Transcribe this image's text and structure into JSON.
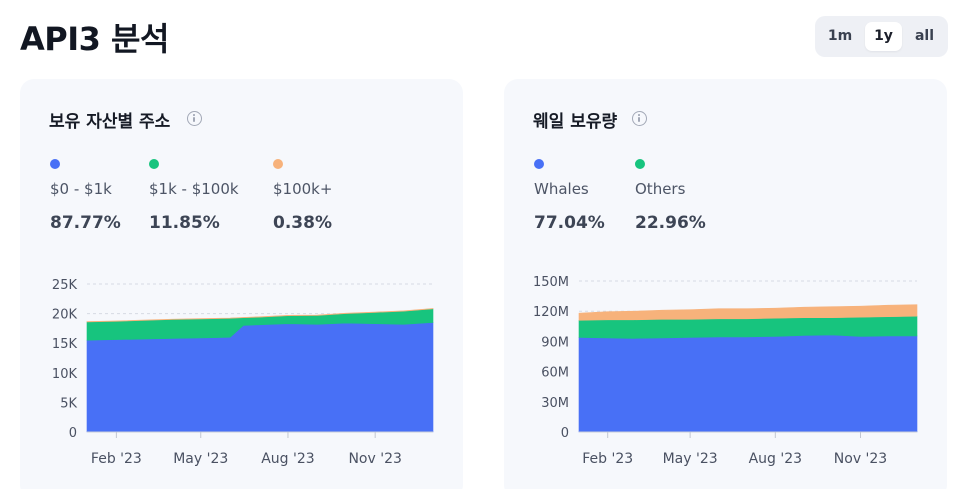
{
  "page": {
    "title": "API3 분석"
  },
  "range": {
    "options": [
      "1m",
      "1y",
      "all"
    ],
    "selected": "1y"
  },
  "colors": {
    "blue": "#4870f6",
    "green": "#17c47e",
    "orange": "#f7b27b",
    "grid": "#d6dae3",
    "axis_text": "#4a5162"
  },
  "cards": [
    {
      "title": "보유 자산별 주소",
      "legend": [
        {
          "color": "#4870f6",
          "label": "$0 - $1k",
          "value": "87.77%"
        },
        {
          "color": "#17c47e",
          "label": "$1k - $100k",
          "value": "11.85%"
        },
        {
          "color": "#f7b27b",
          "label": "$100k+",
          "value": "0.38%"
        }
      ]
    },
    {
      "title": "웨일 보유량",
      "legend": [
        {
          "color": "#4870f6",
          "label": "Whales",
          "value": "77.04%"
        },
        {
          "color": "#17c47e",
          "label": "Others",
          "value": "22.96%"
        }
      ]
    }
  ],
  "chart_data": [
    {
      "type": "area",
      "stacked": true,
      "x": [
        "2023-01-01",
        "2023-02-01",
        "2023-03-01",
        "2023-04-01",
        "2023-05-01",
        "2023-06-01",
        "2023-06-15",
        "2023-07-01",
        "2023-08-01",
        "2023-09-01",
        "2023-10-01",
        "2023-11-01",
        "2023-12-01",
        "2024-01-01"
      ],
      "x_range": [
        "2023-01-01",
        "2024-01-01"
      ],
      "x_ticks": [
        {
          "date": "2023-02-01",
          "label": "Feb '23"
        },
        {
          "date": "2023-05-01",
          "label": "May '23"
        },
        {
          "date": "2023-08-01",
          "label": "Aug '23"
        },
        {
          "date": "2023-11-01",
          "label": "Nov '23"
        }
      ],
      "y_ticks": [
        {
          "value": 0,
          "label": "0"
        },
        {
          "value": 5000,
          "label": "5K"
        },
        {
          "value": 10000,
          "label": "10K"
        },
        {
          "value": 15000,
          "label": "15K"
        },
        {
          "value": 20000,
          "label": "20K"
        },
        {
          "value": 25000,
          "label": "25K"
        }
      ],
      "ylim": [
        0,
        25000
      ],
      "grid": true,
      "series": [
        {
          "name": "$0 - $1k",
          "color": "#4870f6",
          "values": [
            15500,
            15600,
            15700,
            15800,
            15900,
            16000,
            18000,
            18100,
            18300,
            18200,
            18400,
            18300,
            18200,
            18500
          ]
        },
        {
          "name": "$1k - $100k",
          "color": "#17c47e",
          "values": [
            3100,
            3100,
            3150,
            3200,
            3200,
            3200,
            1300,
            1300,
            1350,
            1500,
            1600,
            1900,
            2200,
            2300
          ]
        },
        {
          "name": "$100k+",
          "color": "#f7b27b",
          "values": [
            60,
            60,
            60,
            60,
            60,
            60,
            60,
            60,
            60,
            60,
            60,
            70,
            70,
            70
          ]
        }
      ]
    },
    {
      "type": "area",
      "stacked": true,
      "x": [
        "2023-01-01",
        "2023-02-01",
        "2023-03-01",
        "2023-04-01",
        "2023-05-01",
        "2023-06-01",
        "2023-07-01",
        "2023-08-01",
        "2023-09-01",
        "2023-10-01",
        "2023-11-01",
        "2023-12-01",
        "2024-01-01"
      ],
      "x_range": [
        "2023-01-01",
        "2024-01-01"
      ],
      "x_ticks": [
        {
          "date": "2023-02-01",
          "label": "Feb '23"
        },
        {
          "date": "2023-05-01",
          "label": "May '23"
        },
        {
          "date": "2023-08-01",
          "label": "Aug '23"
        },
        {
          "date": "2023-11-01",
          "label": "Nov '23"
        }
      ],
      "y_ticks": [
        {
          "value": 0,
          "label": "0"
        },
        {
          "value": 30000000,
          "label": "30M"
        },
        {
          "value": 60000000,
          "label": "60M"
        },
        {
          "value": 90000000,
          "label": "90M"
        },
        {
          "value": 120000000,
          "label": "120M"
        },
        {
          "value": 150000000,
          "label": "150M"
        }
      ],
      "ylim": [
        0,
        150000000
      ],
      "grid": true,
      "series": [
        {
          "name": "Whales",
          "color": "#4870f6",
          "values": [
            94000000,
            93500000,
            93000000,
            93500000,
            94000000,
            94500000,
            94500000,
            95000000,
            96000000,
            96500000,
            95000000,
            95500000,
            95500000
          ]
        },
        {
          "name": "Others",
          "color": "#17c47e",
          "values": [
            17000000,
            18000000,
            18500000,
            18500000,
            18000000,
            18000000,
            18000000,
            18000000,
            17500000,
            17000000,
            19000000,
            19000000,
            19500000
          ]
        },
        {
          "name": "",
          "color": "#f7b27b",
          "values": [
            7000000,
            8000000,
            8500000,
            9000000,
            9500000,
            10000000,
            10000000,
            10000000,
            10500000,
            11000000,
            11000000,
            11500000,
            11500000
          ]
        }
      ]
    }
  ]
}
